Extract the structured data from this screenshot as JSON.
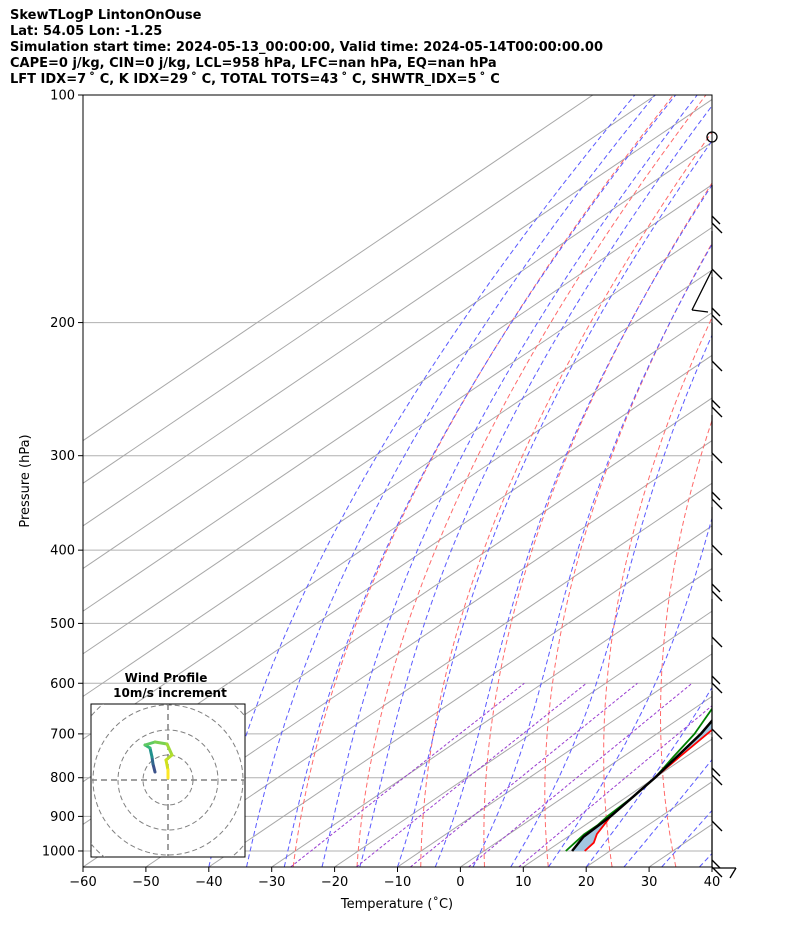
{
  "header": {
    "title": "SkewTLogP LintonOnOuse",
    "latlon": "Lat: 54.05   Lon: -1.25",
    "simulation": "Simulation start time: 2024-05-13_00:00:00, Valid time: 2024-05-14T00:00:00.00",
    "cape_line": "CAPE=0 j/kg, CIN=0 j/kg, LCL=958 hPa, LFC=nan hPa, EQ=nan hPa",
    "index_line": "LFT IDX=7 ˚ C, K IDX=29 ˚ C, TOTAL TOTS=43 ˚ C, SHWTR_IDX=5 ˚ C"
  },
  "chart_data": {
    "type": "line",
    "xlabel": "Temperature ($^\\circ$C)",
    "ylabel": "Pressure (hPa)",
    "xlim": [
      -60,
      40
    ],
    "ylim": [
      1050,
      100
    ],
    "y_scale": "log",
    "skew": true,
    "x_ticks": [
      "−60",
      "−50",
      "−40",
      "−30",
      "−20",
      "−10",
      "0",
      "10",
      "20",
      "30",
      "40"
    ],
    "y_ticks": [
      "1000",
      "900",
      "800",
      "700",
      "600",
      "500",
      "400",
      "300",
      "200",
      "100"
    ],
    "grid": true,
    "series": [
      {
        "color": "#ff0000",
        "points": [
          [
            16,
            1000
          ],
          [
            15.5,
            975
          ],
          [
            14,
            950
          ],
          [
            13,
            925
          ],
          [
            12,
            900
          ],
          [
            11,
            850
          ],
          [
            10,
            800
          ],
          [
            9,
            750
          ],
          [
            8,
            700
          ],
          [
            7,
            650
          ],
          [
            5,
            600
          ],
          [
            3,
            550
          ],
          [
            1,
            500
          ],
          [
            -3,
            450
          ],
          [
            -7,
            400
          ],
          [
            -12,
            350
          ],
          [
            -17,
            300
          ],
          [
            -21,
            275
          ],
          [
            -27,
            250
          ],
          [
            -33,
            225
          ],
          [
            -40,
            200
          ],
          [
            -46,
            185
          ],
          [
            -49,
            175
          ],
          [
            -52,
            150
          ],
          [
            -58,
            125
          ],
          [
            -60,
            100
          ]
        ]
      },
      {
        "color": "#008000",
        "points": [
          [
            13,
            1000
          ],
          [
            12.5,
            975
          ],
          [
            12,
            950
          ],
          [
            12,
            925
          ],
          [
            11.5,
            900
          ],
          [
            11,
            850
          ],
          [
            10,
            800
          ],
          [
            8,
            750
          ],
          [
            6,
            700
          ],
          [
            3,
            650
          ],
          [
            1,
            600
          ],
          [
            -3,
            550
          ],
          [
            -6,
            500
          ],
          [
            -11,
            450
          ],
          [
            -22,
            400
          ],
          [
            -33,
            350
          ],
          [
            -29,
            325
          ],
          [
            -25,
            300
          ],
          [
            -33,
            275
          ],
          [
            -38,
            250
          ],
          [
            -48,
            225
          ],
          [
            -50,
            210
          ],
          [
            -47,
            200
          ],
          [
            -50,
            185
          ],
          [
            -56,
            170
          ],
          [
            -64,
            150
          ],
          [
            -72,
            125
          ],
          [
            -80,
            100
          ]
        ]
      },
      {
        "color": "#000000",
        "points": [
          [
            14,
            1000
          ],
          [
            12.5,
            958
          ],
          [
            12,
            900
          ],
          [
            10,
            800
          ],
          [
            7,
            700
          ],
          [
            2,
            600
          ],
          [
            -4,
            500
          ],
          [
            -13,
            400
          ],
          [
            -26,
            300
          ],
          [
            -46,
            200
          ],
          [
            -72,
            125
          ],
          [
            -82,
            100
          ]
        ]
      }
    ],
    "background_lines": [
      "dry adiabats (red dashed)",
      "moist adiabats (blue dashed)",
      "mixing ratio (purple dashed)",
      "isotherms (gray)"
    ],
    "wind_barbs": "right edge, 100-1000 hPa",
    "inset": {
      "title": "Wind Profile",
      "subtitle": "10m/s increment",
      "type": "hodograph",
      "ring_step_ms": 10,
      "grid_color": "#808080"
    }
  }
}
